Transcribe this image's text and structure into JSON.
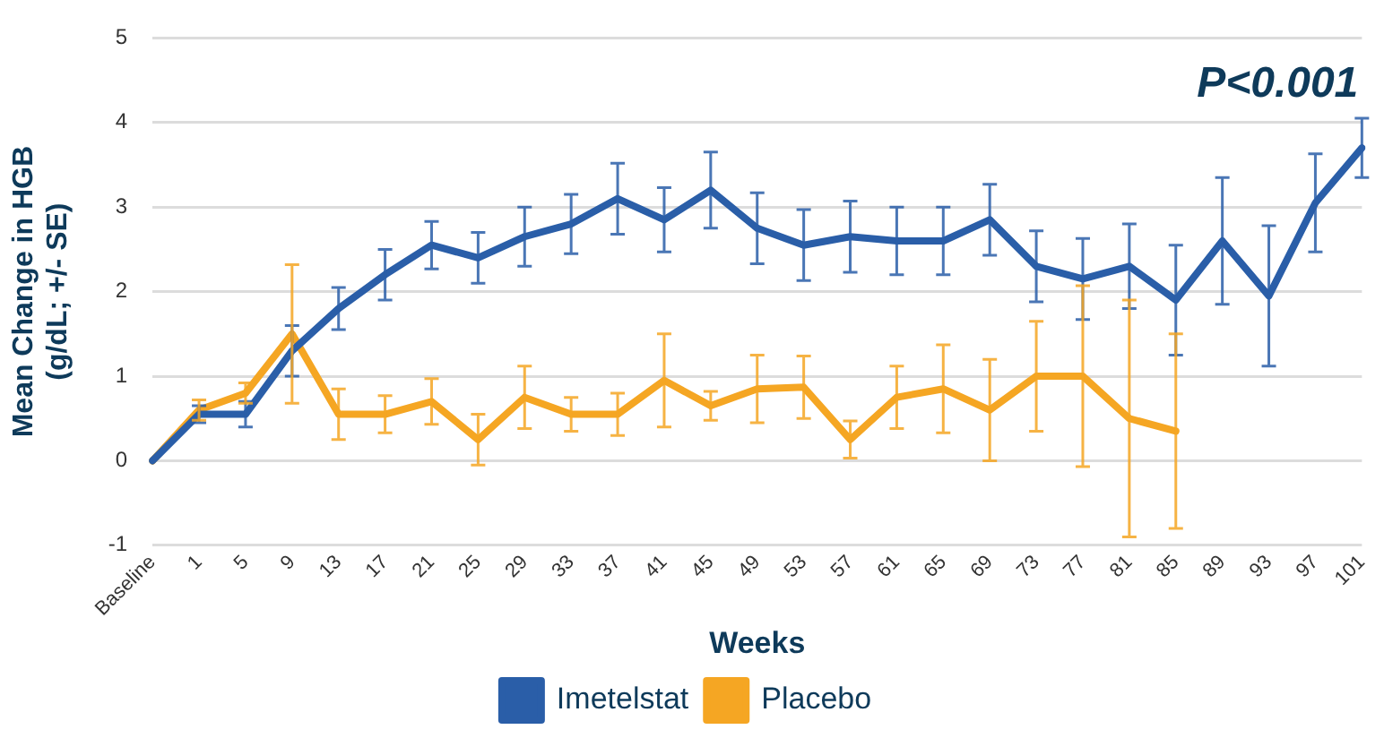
{
  "chart_data": {
    "type": "line",
    "ylabel": "Mean Change in HGB\n(g/dL; +/- SE)",
    "xlabel": "Weeks",
    "annotations": [
      "P<0.001"
    ],
    "categories": [
      "Baseline",
      "1",
      "5",
      "9",
      "13",
      "17",
      "21",
      "25",
      "29",
      "33",
      "37",
      "41",
      "45",
      "49",
      "53",
      "57",
      "61",
      "65",
      "69",
      "73",
      "77",
      "81",
      "85",
      "89",
      "93",
      "97",
      "101"
    ],
    "series": [
      {
        "name": "Imetelstat",
        "color": "#2a5ea8",
        "values": [
          0,
          0.55,
          0.55,
          1.3,
          1.8,
          2.2,
          2.55,
          2.4,
          2.65,
          2.8,
          3.1,
          2.85,
          3.2,
          2.75,
          2.55,
          2.65,
          2.6,
          2.6,
          2.85,
          2.3,
          2.15,
          2.3,
          1.9,
          2.6,
          1.95,
          3.05,
          3.7
        ],
        "errors": [
          null,
          0.1,
          0.15,
          0.3,
          0.25,
          0.3,
          0.28,
          0.3,
          0.35,
          0.35,
          0.42,
          0.38,
          0.45,
          0.42,
          0.42,
          0.42,
          0.4,
          0.4,
          0.42,
          0.42,
          0.48,
          0.5,
          0.65,
          0.75,
          0.83,
          0.58,
          0.35
        ]
      },
      {
        "name": "Placebo",
        "color": "#f5a623",
        "values": [
          0,
          0.6,
          0.8,
          1.5,
          0.55,
          0.55,
          0.7,
          0.25,
          0.75,
          0.55,
          0.55,
          0.95,
          0.65,
          0.85,
          0.87,
          0.25,
          0.75,
          0.85,
          0.6,
          1.0,
          1.0,
          0.5,
          0.35,
          null,
          null,
          null,
          null
        ],
        "errors": [
          null,
          0.12,
          0.12,
          0.82,
          0.3,
          0.22,
          0.27,
          0.3,
          0.37,
          0.2,
          0.25,
          0.55,
          0.17,
          0.4,
          0.37,
          0.22,
          0.37,
          0.52,
          0.6,
          0.65,
          1.07,
          1.4,
          1.15,
          null,
          null,
          null,
          null
        ]
      }
    ],
    "ylim": [
      -1,
      5
    ],
    "yticks": [
      -1,
      0,
      1,
      2,
      3,
      4,
      5
    ],
    "grid": "y",
    "legend": "bottom",
    "marker": "none",
    "line_style": "solid"
  }
}
